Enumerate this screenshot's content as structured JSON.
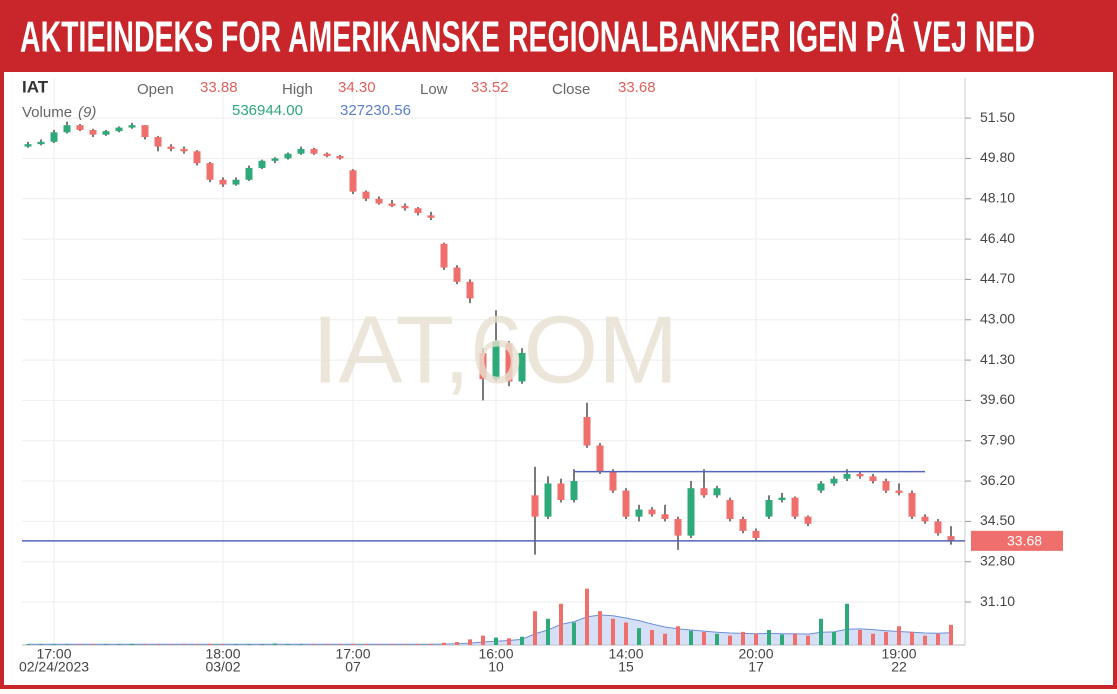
{
  "header": {
    "title": "AKTIEINDEKS FOR AMERIKANSKE REGIONALBANKER IGEN PÅ VEJ NED"
  },
  "info": {
    "symbol": "IAT",
    "open_label": "Open",
    "open": "33.88",
    "high_label": "High",
    "high": "34.30",
    "low_label": "Low",
    "low": "33.52",
    "close_label": "Close",
    "close": "33.68",
    "volume_label": "Volume",
    "volume_period": "(9)",
    "volume_value": "536944.00",
    "volume_ma": "327230.56"
  },
  "watermark": "IAT,6OM",
  "chart_data": {
    "type": "candlestick",
    "up_color": "#2eaa7a",
    "down_color": "#ef6f6c",
    "categories": [
      null,
      null,
      "17:00",
      null,
      null,
      null,
      null,
      null,
      null,
      null,
      null,
      null,
      null,
      null,
      null,
      "18:00",
      null,
      null,
      null,
      null,
      null,
      null,
      null,
      null,
      null,
      "17:00",
      null,
      null,
      null,
      null,
      null,
      null,
      null,
      null,
      null,
      null,
      "16:00",
      null,
      null,
      null,
      null,
      null,
      null,
      null,
      null,
      null,
      "14:00",
      null,
      null,
      null,
      null,
      null,
      null,
      null,
      null,
      null,
      "20:00",
      null,
      null,
      null,
      null,
      null,
      null,
      null,
      null,
      null,
      null,
      "19:00",
      null,
      null,
      null,
      null
    ],
    "category_dates": [
      null,
      null,
      "02/24/2023",
      null,
      null,
      null,
      null,
      null,
      null,
      null,
      null,
      null,
      null,
      null,
      null,
      "03/02",
      null,
      null,
      null,
      null,
      null,
      null,
      null,
      null,
      null,
      "07",
      null,
      null,
      null,
      null,
      null,
      null,
      null,
      null,
      null,
      null,
      "10",
      null,
      null,
      null,
      null,
      null,
      null,
      null,
      null,
      null,
      "15",
      null,
      null,
      null,
      null,
      null,
      null,
      null,
      null,
      null,
      "17",
      null,
      null,
      null,
      null,
      null,
      null,
      null,
      null,
      null,
      null,
      "22",
      null,
      null,
      null,
      null
    ],
    "open": [
      50.3,
      50.4,
      50.5,
      50.9,
      51.2,
      51.0,
      50.8,
      50.95,
      51.1,
      51.2,
      50.7,
      50.3,
      50.2,
      50.1,
      49.6,
      48.9,
      48.7,
      48.9,
      49.4,
      49.7,
      49.8,
      50.0,
      50.2,
      50.0,
      49.9,
      49.3,
      48.4,
      48.1,
      47.9,
      47.8,
      47.7,
      47.4,
      46.2,
      45.2,
      44.6,
      41.6,
      40.5,
      42.0,
      40.4,
      35.6,
      34.7,
      36.1,
      35.4,
      38.9,
      37.7,
      36.6,
      35.8,
      34.7,
      35.0,
      34.8,
      34.6,
      33.9,
      35.9,
      35.6,
      35.4,
      34.6,
      34.1,
      34.7,
      35.4,
      35.5,
      34.7,
      35.8,
      36.1,
      36.3,
      36.5,
      36.4,
      36.2,
      35.8,
      35.7,
      34.7,
      34.5,
      33.88
    ],
    "high": [
      50.5,
      50.6,
      51.0,
      51.35,
      51.25,
      51.05,
      51.0,
      51.15,
      51.3,
      51.2,
      50.75,
      50.4,
      50.3,
      50.15,
      49.65,
      49.0,
      49.0,
      49.5,
      49.75,
      49.85,
      50.05,
      50.3,
      50.25,
      50.05,
      49.95,
      49.35,
      48.45,
      48.2,
      48.05,
      47.9,
      47.75,
      47.55,
      46.25,
      45.3,
      44.7,
      41.8,
      43.4,
      42.1,
      41.8,
      36.8,
      36.4,
      36.3,
      36.7,
      39.5,
      37.8,
      36.7,
      35.9,
      35.2,
      35.1,
      35.2,
      34.7,
      36.2,
      36.7,
      36.0,
      35.5,
      34.7,
      34.2,
      35.6,
      35.7,
      35.55,
      34.75,
      36.2,
      36.4,
      36.7,
      36.6,
      36.5,
      36.3,
      36.1,
      35.8,
      34.8,
      34.6,
      34.3
    ],
    "low": [
      50.25,
      50.35,
      50.45,
      50.85,
      50.95,
      50.7,
      50.75,
      50.9,
      51.05,
      50.6,
      50.1,
      50.1,
      50.0,
      49.5,
      48.8,
      48.6,
      48.65,
      48.85,
      49.35,
      49.6,
      49.75,
      49.95,
      49.95,
      49.85,
      49.75,
      48.3,
      48.0,
      47.85,
      47.75,
      47.6,
      47.4,
      47.2,
      45.1,
      44.5,
      43.7,
      39.6,
      40.4,
      40.2,
      40.3,
      33.1,
      34.6,
      35.3,
      35.3,
      37.6,
      36.5,
      35.7,
      34.6,
      34.5,
      34.7,
      34.5,
      33.3,
      33.8,
      35.5,
      35.5,
      34.5,
      34.0,
      33.7,
      34.6,
      35.3,
      34.6,
      34.3,
      35.7,
      36.0,
      36.2,
      36.3,
      36.1,
      35.7,
      35.6,
      34.6,
      34.4,
      33.9,
      33.52
    ],
    "close": [
      50.4,
      50.5,
      50.9,
      51.2,
      51.0,
      50.8,
      50.95,
      51.1,
      51.2,
      50.7,
      50.3,
      50.2,
      50.1,
      49.6,
      48.9,
      48.7,
      48.9,
      49.4,
      49.7,
      49.8,
      50.0,
      50.2,
      50.0,
      49.9,
      49.8,
      48.4,
      48.1,
      47.9,
      47.8,
      47.7,
      47.5,
      47.3,
      45.2,
      44.6,
      43.9,
      40.5,
      42.1,
      40.4,
      41.6,
      34.7,
      36.1,
      35.4,
      36.2,
      37.7,
      36.6,
      35.8,
      34.7,
      35.0,
      34.8,
      34.6,
      33.9,
      35.9,
      35.6,
      35.9,
      34.6,
      34.1,
      33.8,
      35.4,
      35.5,
      34.7,
      34.4,
      36.1,
      36.3,
      36.5,
      36.4,
      36.2,
      35.8,
      35.7,
      34.7,
      34.5,
      34.0,
      33.68
    ],
    "volume": [
      20000,
      18000,
      25000,
      15000,
      20000,
      22000,
      18000,
      20000,
      30000,
      20000,
      18000,
      22000,
      20000,
      25000,
      30000,
      20000,
      18000,
      22000,
      20000,
      40000,
      20000,
      18000,
      22000,
      20000,
      25000,
      30000,
      22000,
      20000,
      18000,
      25000,
      20000,
      30000,
      60000,
      80000,
      150000,
      250000,
      200000,
      180000,
      220000,
      900000,
      700000,
      1100000,
      600000,
      1500000,
      900000,
      700000,
      600000,
      450000,
      400000,
      300000,
      500000,
      380000,
      350000,
      300000,
      250000,
      350000,
      300000,
      400000,
      280000,
      300000,
      250000,
      700000,
      350000,
      1100000,
      400000,
      300000,
      350000,
      500000,
      350000,
      250000,
      300000,
      536944
    ],
    "volume_ma": [
      20000,
      20000,
      20000,
      20000,
      20000,
      20000,
      20000,
      20000,
      20000,
      20000,
      20000,
      20000,
      20000,
      20000,
      20000,
      20000,
      20000,
      20000,
      20000,
      20000,
      20000,
      20000,
      20000,
      20000,
      20000,
      20000,
      20000,
      20000,
      20000,
      20000,
      20000,
      20000,
      25000,
      35000,
      50000,
      80000,
      100000,
      120000,
      150000,
      300000,
      400000,
      550000,
      620000,
      750000,
      800000,
      780000,
      720000,
      650000,
      560000,
      480000,
      430000,
      400000,
      370000,
      340000,
      320000,
      310000,
      300000,
      310000,
      300000,
      300000,
      290000,
      340000,
      350000,
      420000,
      430000,
      410000,
      380000,
      360000,
      340000,
      320000,
      315000,
      327230.56
    ],
    "volume_ylim": [
      0,
      4000000
    ],
    "ylim": [
      29.29,
      53.19
    ],
    "yticks": [
      {
        "value": 51.5,
        "label": "51.50"
      },
      {
        "value": 49.8,
        "label": "49.80"
      },
      {
        "value": 48.1,
        "label": "48.10"
      },
      {
        "value": 46.4,
        "label": "46.40"
      },
      {
        "value": 44.7,
        "label": "44.70"
      },
      {
        "value": 43,
        "label": "43.00"
      },
      {
        "value": 41.3,
        "label": "41.30"
      },
      {
        "value": 39.6,
        "label": "39.60"
      },
      {
        "value": 37.9,
        "label": "37.90"
      },
      {
        "value": 36.2,
        "label": "36.20"
      },
      {
        "value": 34.5,
        "label": "34.50"
      },
      {
        "value": 32.8,
        "label": "32.80"
      },
      {
        "value": 31.1,
        "label": "31.10"
      }
    ],
    "hlines": [
      {
        "value": 36.6,
        "from": 42,
        "to": 69
      },
      {
        "value": 33.68
      }
    ],
    "hline_color": "#5563b8",
    "grid": true
  }
}
